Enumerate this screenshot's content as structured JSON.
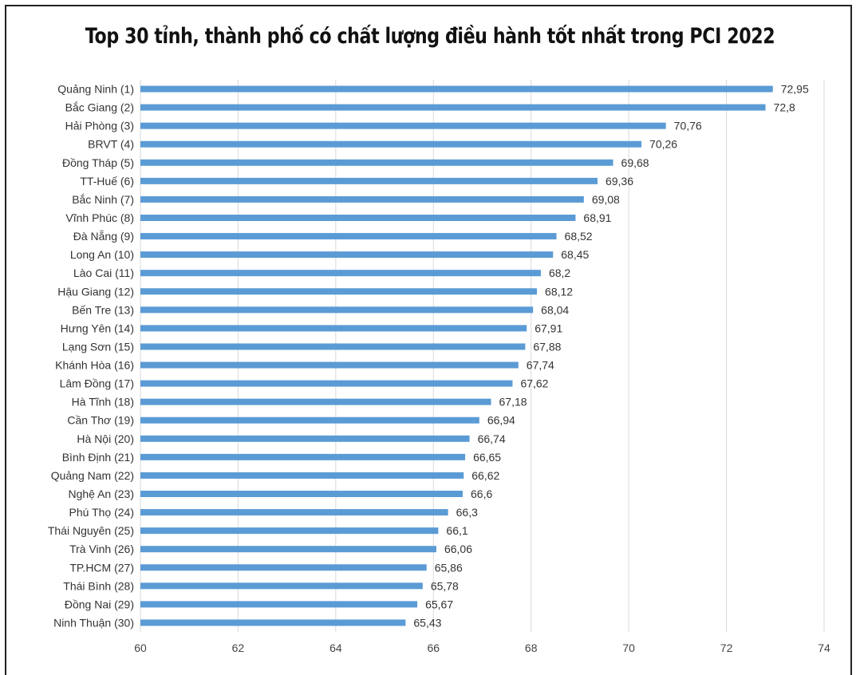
{
  "chart_data": {
    "type": "bar",
    "orientation": "horizontal",
    "title": "Top 30 tỉnh, thành phố có chất lượng điều hành tốt nhất trong PCI 2022",
    "categories": [
      "Quảng Ninh (1)",
      "Bắc Giang (2)",
      "Hải Phòng (3)",
      "BRVT (4)",
      "Đồng Tháp (5)",
      "TT-Huế (6)",
      "Bắc Ninh (7)",
      "Vĩnh Phúc (8)",
      "Đà Nẵng (9)",
      "Long An (10)",
      "Lào Cai (11)",
      "Hậu Giang (12)",
      "Bến Tre (13)",
      "Hưng Yên (14)",
      "Lạng Sơn (15)",
      "Khánh Hòa (16)",
      "Lâm Đồng (17)",
      "Hà Tĩnh (18)",
      "Cần Thơ (19)",
      "Hà Nội (20)",
      "Bình Định (21)",
      "Quảng Nam (22)",
      "Nghệ An (23)",
      "Phú Thọ (24)",
      "Thái Nguyên (25)",
      "Trà Vinh (26)",
      "TP.HCM (27)",
      "Thái Bình (28)",
      "Đồng Nai (29)",
      "Ninh Thuận (30)"
    ],
    "values": [
      72.95,
      72.8,
      70.76,
      70.26,
      69.68,
      69.36,
      69.08,
      68.91,
      68.52,
      68.45,
      68.2,
      68.12,
      68.04,
      67.91,
      67.88,
      67.74,
      67.62,
      67.18,
      66.94,
      66.74,
      66.65,
      66.62,
      66.6,
      66.3,
      66.1,
      66.06,
      65.86,
      65.78,
      65.67,
      65.43
    ],
    "value_labels": [
      "72,95",
      "72,8",
      "70,76",
      "70,26",
      "69,68",
      "69,36",
      "69,08",
      "68,91",
      "68,52",
      "68,45",
      "68,2",
      "68,12",
      "68,04",
      "67,91",
      "67,88",
      "67,74",
      "67,62",
      "67,18",
      "66,94",
      "66,74",
      "66,65",
      "66,62",
      "66,6",
      "66,3",
      "66,1",
      "66,06",
      "65,86",
      "65,78",
      "65,67",
      "65,43"
    ],
    "xlim": [
      60,
      74
    ],
    "xticks": [
      60,
      62,
      64,
      66,
      68,
      70,
      72,
      74
    ],
    "grid": true,
    "bar_color": "#5b9bd5",
    "xlabel": "",
    "ylabel": ""
  }
}
